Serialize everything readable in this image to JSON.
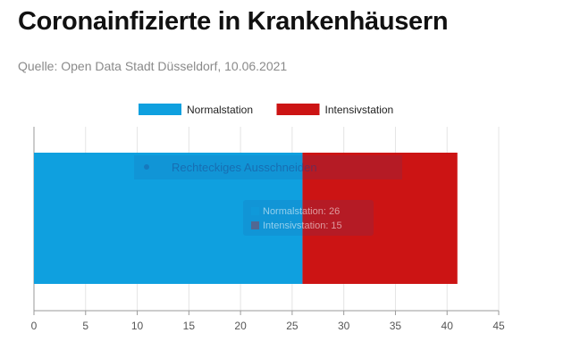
{
  "title": "Coronainfizierte in Krankenhäusern",
  "subtitle": "Quelle: Open Data Stadt Düsseldorf, 10.06.2021",
  "overlay": {
    "menu_label": "Rechteckiges Ausschneiden"
  },
  "tooltip": {
    "lines": [
      "Normalstation: 26",
      "Intensivstation: 15"
    ]
  },
  "chart_data": {
    "type": "bar",
    "orientation": "horizontal",
    "stacked": true,
    "categories": [
      ""
    ],
    "series": [
      {
        "name": "Normalstation",
        "values": [
          26
        ],
        "color": "#0fa0df"
      },
      {
        "name": "Intensivstation",
        "values": [
          15
        ],
        "color": "#cc1414"
      }
    ],
    "title": "Coronainfizierte in Krankenhäusern",
    "subtitle": "Quelle: Open Data Stadt Düsseldorf, 10.06.2021",
    "xlim": [
      0,
      45
    ],
    "xticks": [
      0,
      5,
      10,
      15,
      20,
      25,
      30,
      35,
      40,
      45
    ],
    "grid": true,
    "legend": "top-center"
  }
}
